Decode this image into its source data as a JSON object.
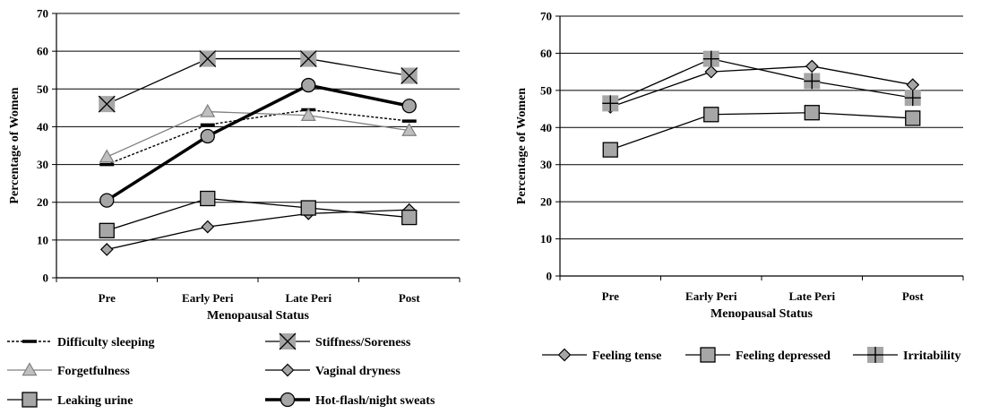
{
  "chart_data": [
    {
      "type": "line",
      "categories": [
        "Pre",
        "Early Peri",
        "Late Peri",
        "Post"
      ],
      "xlabel": "Menopausal Status",
      "ylabel": "Percentage of Women",
      "ylim": [
        0,
        70
      ],
      "yticks": [
        0,
        10,
        20,
        30,
        40,
        50,
        60,
        70
      ],
      "grid": "horizontal",
      "legend_position": "bottom",
      "series": [
        {
          "name": "Difficulty sleeping",
          "values": [
            30,
            40.5,
            44.5,
            41.5
          ],
          "color": "#000000",
          "marker": "dash",
          "style": "dotted"
        },
        {
          "name": "Stiffness/Soreness",
          "values": [
            46,
            58,
            58,
            53.5
          ],
          "color": "#000000",
          "marker": "x-square",
          "style": "solid"
        },
        {
          "name": "Forgetfulness",
          "values": [
            32,
            44,
            43,
            39
          ],
          "color": "#808080",
          "marker": "triangle",
          "style": "solid"
        },
        {
          "name": "Vaginal dryness",
          "values": [
            7.5,
            13.5,
            17,
            18
          ],
          "color": "#000000",
          "marker": "diamond",
          "style": "solid"
        },
        {
          "name": "Leaking urine",
          "values": [
            12.5,
            21,
            18.5,
            16
          ],
          "color": "#000000",
          "marker": "square",
          "style": "solid"
        },
        {
          "name": "Hot-flash/night sweats",
          "values": [
            20.5,
            37.5,
            51,
            45.5
          ],
          "color": "#000000",
          "marker": "circle",
          "style": "thick"
        }
      ]
    },
    {
      "type": "line",
      "categories": [
        "Pre",
        "Early Peri",
        "Late Peri",
        "Post"
      ],
      "xlabel": "Menopausal Status",
      "ylabel": "Percentage of Women",
      "ylim": [
        0,
        70
      ],
      "yticks": [
        0,
        10,
        20,
        30,
        40,
        50,
        60,
        70
      ],
      "grid": "horizontal",
      "legend_position": "bottom",
      "series": [
        {
          "name": "Feeling tense",
          "values": [
            45.5,
            55,
            56.5,
            51.5
          ],
          "color": "#000000",
          "marker": "diamond",
          "style": "solid"
        },
        {
          "name": "Feeling depressed",
          "values": [
            34,
            43.5,
            44,
            42.5
          ],
          "color": "#000000",
          "marker": "square",
          "style": "solid"
        },
        {
          "name": "Irritability",
          "values": [
            46.5,
            58.5,
            52.5,
            48
          ],
          "color": "#000000",
          "marker": "plus-square",
          "style": "solid"
        }
      ]
    }
  ]
}
